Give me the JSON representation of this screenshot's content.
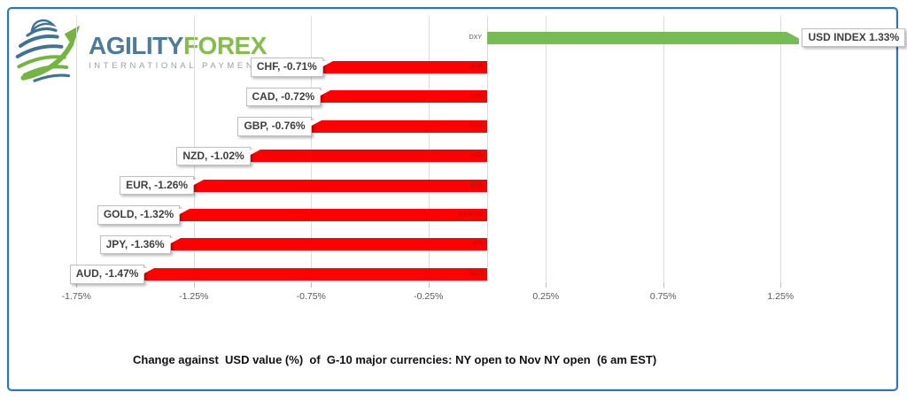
{
  "brand": {
    "name_primary": "AGILITY",
    "name_secondary": "FOREX",
    "tagline": "INTERNATIONAL PAYMENTS"
  },
  "caption": "Change against  USD value (%)  of  G-10 major currencies: NY open to Nov NY open  (6 am EST)",
  "colors": {
    "positive_bar": "#77BB55",
    "negative_bar": "#FE0000",
    "frame_border": "#2E75B6",
    "grid": "#DDDDDD",
    "axis_text": "#595959",
    "label_text": "#3F3F3F",
    "inside_label_text": "#A31515",
    "brand_primary": "#4F7B99",
    "brand_secondary": "#84BD4C",
    "brand_tagline": "#9AA0A5"
  },
  "chart_data": {
    "type": "bar",
    "orientation": "horizontal",
    "unit": "%",
    "categories": [
      "DXY",
      "CHF",
      "CAD",
      "GBP",
      "NZD",
      "EUR",
      "XAUUSD",
      "JPY",
      "AUD"
    ],
    "values": [
      1.33,
      -0.71,
      -0.72,
      -0.76,
      -1.02,
      -1.26,
      -1.32,
      -1.36,
      -1.47
    ],
    "data_labels": [
      "USD INDEX 1.33%",
      "CHF, -0.71%",
      "CAD, -0.72%",
      "GBP, -0.76%",
      "NZD, -1.02%",
      "EUR, -1.26%",
      "GOLD, -1.32%",
      "JPY, -1.36%",
      "AUD, -1.47%"
    ],
    "x_tick_labels": [
      "-1.75%",
      "-1.25%",
      "-0.75%",
      "-0.25%",
      "0.25%",
      "0.75%",
      "1.25%"
    ],
    "x_tick_values": [
      -1.75,
      -1.25,
      -0.75,
      -0.25,
      0.25,
      0.75,
      1.25
    ],
    "xlim": [
      -1.97,
      1.53
    ],
    "grid": true,
    "legend": false,
    "title": "",
    "xlabel": "",
    "ylabel": ""
  }
}
